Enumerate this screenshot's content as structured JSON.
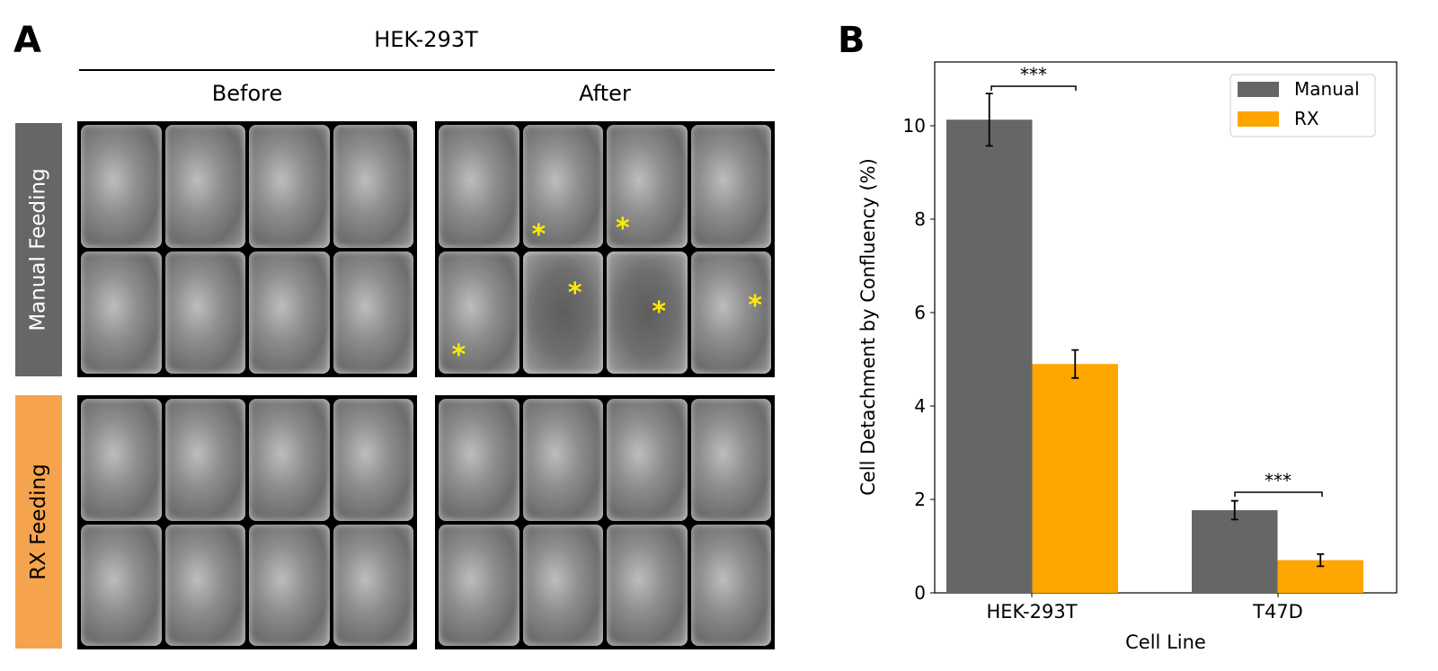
{
  "panel_a": {
    "letter": "A",
    "title": "HEK-293T",
    "columns": [
      "Before",
      "After"
    ],
    "rows": [
      {
        "label": "Manual Feeding",
        "color": "#666666"
      },
      {
        "label": "RX Feeding",
        "color": "#f5a34d"
      }
    ],
    "annotation_marker": "*",
    "annotation_color": "#ffea00"
  },
  "panel_b": {
    "letter": "B"
  },
  "chart_data": {
    "type": "bar",
    "title": "",
    "xlabel": "Cell Line",
    "ylabel": "Cell Detachment by Confluency (%)",
    "categories": [
      "HEK-293T",
      "T47D"
    ],
    "series": [
      {
        "name": "Manual",
        "color": "#666666",
        "values": [
          10.13,
          1.77
        ],
        "errors": [
          0.56,
          0.2
        ]
      },
      {
        "name": "RX",
        "color": "#ffa500",
        "values": [
          4.9,
          0.7
        ],
        "errors": [
          0.3,
          0.13
        ]
      }
    ],
    "yticks": [
      0,
      2,
      4,
      6,
      8,
      10
    ],
    "ylim": [
      0,
      11.4
    ],
    "grid": false,
    "legend_position": "upper right",
    "annotations": [
      {
        "text": "***",
        "category": "HEK-293T"
      },
      {
        "text": "***",
        "category": "T47D"
      }
    ]
  }
}
